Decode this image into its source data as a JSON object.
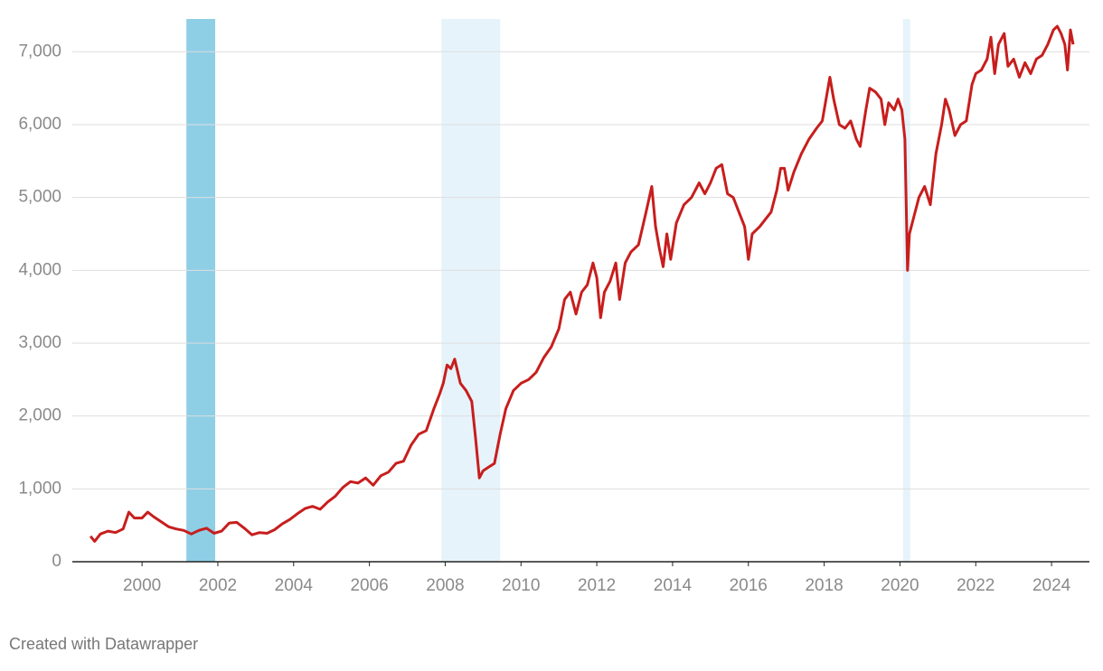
{
  "chart_data": {
    "type": "line",
    "x": [
      1998.64,
      1998.75,
      1998.9,
      1999.1,
      1999.3,
      1999.5,
      1999.65,
      1999.8,
      2000.0,
      2000.15,
      2000.3,
      2000.5,
      2000.7,
      2000.9,
      2001.1,
      2001.3,
      2001.5,
      2001.7,
      2001.9,
      2002.1,
      2002.3,
      2002.5,
      2002.7,
      2002.9,
      2003.1,
      2003.3,
      2003.5,
      2003.7,
      2003.9,
      2004.1,
      2004.3,
      2004.5,
      2004.7,
      2004.9,
      2005.1,
      2005.3,
      2005.5,
      2005.7,
      2005.9,
      2006.1,
      2006.3,
      2006.5,
      2006.7,
      2006.9,
      2007.1,
      2007.3,
      2007.5,
      2007.7,
      2007.85,
      2007.95,
      2008.05,
      2008.15,
      2008.25,
      2008.4,
      2008.55,
      2008.7,
      2008.8,
      2008.9,
      2009.0,
      2009.15,
      2009.3,
      2009.45,
      2009.6,
      2009.8,
      2010.0,
      2010.2,
      2010.4,
      2010.6,
      2010.8,
      2011.0,
      2011.15,
      2011.3,
      2011.45,
      2011.6,
      2011.75,
      2011.9,
      2012.0,
      2012.1,
      2012.2,
      2012.35,
      2012.5,
      2012.6,
      2012.75,
      2012.9,
      2013.1,
      2013.3,
      2013.45,
      2013.55,
      2013.65,
      2013.75,
      2013.85,
      2013.95,
      2014.1,
      2014.3,
      2014.5,
      2014.7,
      2014.85,
      2015.0,
      2015.15,
      2015.3,
      2015.45,
      2015.6,
      2015.75,
      2015.9,
      2016.0,
      2016.1,
      2016.3,
      2016.45,
      2016.6,
      2016.75,
      2016.85,
      2016.95,
      2017.05,
      2017.2,
      2017.4,
      2017.6,
      2017.8,
      2017.95,
      2018.1,
      2018.15,
      2018.25,
      2018.4,
      2018.55,
      2018.7,
      2018.85,
      2018.95,
      2019.1,
      2019.2,
      2019.35,
      2019.5,
      2019.6,
      2019.7,
      2019.85,
      2019.95,
      2020.05,
      2020.13,
      2020.2,
      2020.25,
      2020.35,
      2020.5,
      2020.65,
      2020.8,
      2020.95,
      2021.1,
      2021.2,
      2021.3,
      2021.45,
      2021.6,
      2021.75,
      2021.9,
      2022.0,
      2022.15,
      2022.3,
      2022.4,
      2022.5,
      2022.6,
      2022.75,
      2022.85,
      2023.0,
      2023.15,
      2023.3,
      2023.45,
      2023.6,
      2023.75,
      2023.9,
      2024.05,
      2024.15,
      2024.25,
      2024.35,
      2024.42,
      2024.5,
      2024.57
    ],
    "series": [
      {
        "color": "#c71e1d",
        "values": [
          350,
          280,
          380,
          420,
          400,
          450,
          680,
          600,
          600,
          680,
          620,
          550,
          480,
          450,
          430,
          380,
          430,
          460,
          390,
          420,
          530,
          540,
          460,
          370,
          400,
          390,
          440,
          520,
          580,
          660,
          730,
          760,
          720,
          820,
          900,
          1020,
          1100,
          1080,
          1150,
          1050,
          1180,
          1230,
          1350,
          1380,
          1600,
          1750,
          1800,
          2100,
          2300,
          2450,
          2700,
          2650,
          2780,
          2450,
          2350,
          2200,
          1700,
          1150,
          1250,
          1300,
          1350,
          1750,
          2100,
          2350,
          2450,
          2500,
          2600,
          2800,
          2950,
          3200,
          3600,
          3700,
          3400,
          3700,
          3800,
          4100,
          3900,
          3350,
          3700,
          3850,
          4100,
          3600,
          4100,
          4250,
          4350,
          4800,
          5150,
          4600,
          4300,
          4050,
          4500,
          4150,
          4650,
          4900,
          5000,
          5200,
          5050,
          5200,
          5400,
          5450,
          5050,
          5000,
          4800,
          4600,
          4150,
          4500,
          4600,
          4700,
          4800,
          5100,
          5400,
          5400,
          5100,
          5350,
          5600,
          5800,
          5950,
          6050,
          6500,
          6650,
          6350,
          6000,
          5950,
          6050,
          5800,
          5700,
          6200,
          6500,
          6450,
          6350,
          6000,
          6300,
          6200,
          6350,
          6200,
          5800,
          4000,
          4500,
          4700,
          5000,
          5150,
          4900,
          5600,
          6000,
          6350,
          6200,
          5850,
          6000,
          6050,
          6550,
          6700,
          6750,
          6900,
          7200,
          6700,
          7100,
          7250,
          6800,
          6900,
          6650,
          6850,
          6700,
          6900,
          6950,
          7100,
          7300,
          7350,
          7250,
          7100,
          6750,
          7300,
          7100
        ]
      }
    ],
    "shaded_ranges": [
      {
        "start": 2001.17,
        "end": 2001.93,
        "color": "#8ecfe6"
      },
      {
        "start": 2007.9,
        "end": 2009.45,
        "color": "#e6f3fa"
      },
      {
        "start": 2020.08,
        "end": 2020.27,
        "color": "#e6f3fa"
      }
    ],
    "xlim": [
      1998.16,
      2025.0
    ],
    "ylim": [
      0,
      7450
    ],
    "xticks": [
      2000,
      2002,
      2004,
      2006,
      2008,
      2010,
      2012,
      2014,
      2016,
      2018,
      2020,
      2022,
      2024
    ],
    "yticks": [
      0,
      {
        "value": 1000,
        "label": "1,000"
      },
      {
        "value": 2000,
        "label": "2,000"
      },
      {
        "value": 3000,
        "label": "3,000"
      },
      {
        "value": 4000,
        "label": "4,000"
      },
      {
        "value": 5000,
        "label": "5,000"
      },
      {
        "value": 6000,
        "label": "6,000"
      },
      {
        "value": 7000,
        "label": "7,000"
      }
    ],
    "grid": true
  },
  "footer": "Created with Datawrapper"
}
